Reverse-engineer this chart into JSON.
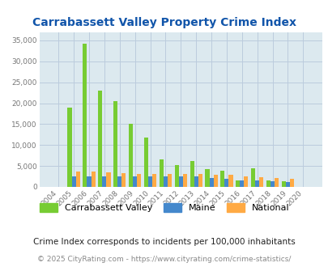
{
  "title": "Carrabassett Valley Property Crime Index",
  "years": [
    2004,
    2005,
    2006,
    2007,
    2008,
    2009,
    2010,
    2011,
    2012,
    2013,
    2014,
    2015,
    2016,
    2017,
    2018,
    2019,
    2020
  ],
  "carrabassett": [
    0,
    19000,
    34200,
    23000,
    20500,
    15000,
    11700,
    6500,
    5300,
    6100,
    4200,
    3800,
    1500,
    4500,
    1600,
    1300,
    0
  ],
  "maine": [
    0,
    2600,
    2600,
    2600,
    2600,
    2600,
    2600,
    2600,
    2600,
    2500,
    2100,
    1900,
    1600,
    1500,
    1400,
    1200,
    0
  ],
  "national": [
    0,
    3600,
    3600,
    3400,
    3300,
    3100,
    3100,
    3000,
    3000,
    3000,
    2900,
    2900,
    2600,
    2400,
    2200,
    2000,
    0
  ],
  "color_carrabassett": "#77cc33",
  "color_maine": "#4488cc",
  "color_national": "#ffaa44",
  "bg_color": "#dce9ef",
  "grid_color": "#bbccdd",
  "ylim": [
    0,
    37000
  ],
  "yticks": [
    0,
    5000,
    10000,
    15000,
    20000,
    25000,
    30000,
    35000
  ],
  "legend_labels": [
    "Carrabassett Valley",
    "Maine",
    "National"
  ],
  "footnote1": "Crime Index corresponds to incidents per 100,000 inhabitants",
  "footnote2": "© 2025 CityRating.com - https://www.cityrating.com/crime-statistics/",
  "title_color": "#1155aa",
  "footnote1_color": "#222222",
  "footnote2_color": "#888888"
}
